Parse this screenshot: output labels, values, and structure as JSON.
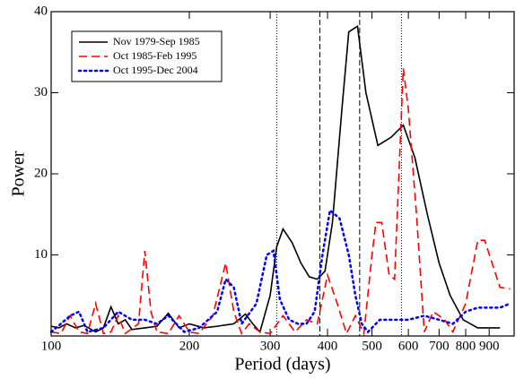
{
  "chart_data": {
    "type": "line",
    "xlabel": "Period (days)",
    "ylabel": "Power",
    "xscale": "log",
    "xlim": [
      100,
      1020
    ],
    "xticks": [
      100,
      200,
      300,
      400,
      500,
      600,
      700,
      800,
      900
    ],
    "ylim": [
      0,
      40
    ],
    "yticks": [
      10,
      20,
      30,
      40
    ],
    "legend": "upper left",
    "vlines": [
      {
        "x": 310,
        "style": "dotted"
      },
      {
        "x": 385,
        "style": "dashed"
      },
      {
        "x": 470,
        "style": "dashed"
      },
      {
        "x": 580,
        "style": "dotted"
      }
    ],
    "series": [
      {
        "name": "Nov 1979-Sep 1985",
        "color": "#000000",
        "dash": "solid",
        "x": [
          100,
          104,
          108,
          113,
          118,
          125,
          130,
          135,
          140,
          145,
          150,
          160,
          170,
          180,
          190,
          200,
          215,
          230,
          250,
          265,
          275,
          285,
          300,
          310,
          320,
          335,
          350,
          365,
          380,
          395,
          410,
          430,
          445,
          465,
          485,
          515,
          550,
          585,
          620,
          660,
          700,
          740,
          790,
          850,
          900,
          950
        ],
        "values": [
          1.2,
          1.0,
          1.5,
          1.0,
          1.3,
          0.5,
          1.0,
          3.6,
          1.5,
          2.0,
          0.8,
          1.0,
          1.2,
          2.8,
          1.0,
          1.5,
          1.0,
          1.2,
          1.5,
          2.7,
          1.5,
          0.5,
          5,
          11,
          13.2,
          11.5,
          9,
          7.3,
          7,
          8,
          14,
          28,
          37.5,
          38.2,
          30,
          23.5,
          24.5,
          26,
          22,
          15,
          9,
          5,
          2,
          1,
          1,
          1
        ]
      },
      {
        "name": "Oct 1985-Feb 1995",
        "color": "#ff0000",
        "dash": "dashed",
        "x": [
          100,
          105,
          110,
          115,
          120,
          125,
          130,
          135,
          140,
          145,
          155,
          160,
          165,
          170,
          180,
          190,
          200,
          210,
          225,
          240,
          250,
          260,
          270,
          285,
          300,
          320,
          340,
          360,
          380,
          400,
          420,
          440,
          460,
          480,
          500,
          510,
          525,
          545,
          560,
          585,
          600,
          625,
          650,
          680,
          720,
          750,
          800,
          850,
          880,
          950,
          1000
        ],
        "values": [
          0.5,
          0.3,
          2.5,
          0.5,
          0.3,
          4,
          0.3,
          0.5,
          2.5,
          0.3,
          1.5,
          10.5,
          3,
          0.5,
          0.3,
          2.5,
          0.5,
          0.3,
          2.5,
          9,
          3,
          0.3,
          1.5,
          0.5,
          0.3,
          2.5,
          0.5,
          2.0,
          1.5,
          7.5,
          4,
          0.3,
          2.5,
          0.3,
          10,
          14,
          14,
          7.5,
          7,
          33,
          28,
          15,
          0.5,
          3,
          2,
          0.5,
          4,
          11.8,
          11.8,
          6,
          5.8
        ]
      },
      {
        "name": "Oct 1995-Dec 2004",
        "color": "#0000ff",
        "dash": "dotted",
        "x": [
          100,
          105,
          110,
          115,
          120,
          130,
          140,
          150,
          160,
          170,
          180,
          195,
          210,
          230,
          240,
          250,
          260,
          280,
          295,
          305,
          315,
          330,
          345,
          360,
          375,
          390,
          405,
          425,
          445,
          460,
          475,
          490,
          520,
          560,
          600,
          650,
          700,
          750,
          800,
          850,
          900,
          950,
          1000
        ],
        "values": [
          0.5,
          1.5,
          2.5,
          3,
          0.5,
          1,
          3,
          2,
          2,
          1.5,
          2.5,
          0.5,
          1,
          3,
          7,
          6,
          1.5,
          4,
          10,
          10.5,
          4.5,
          2,
          1.5,
          1.5,
          3,
          10,
          15.5,
          14.5,
          10,
          5,
          1.5,
          0.5,
          2,
          2,
          2,
          2.5,
          2,
          1.5,
          3,
          3.5,
          3.5,
          3.5,
          4
        ]
      }
    ]
  }
}
